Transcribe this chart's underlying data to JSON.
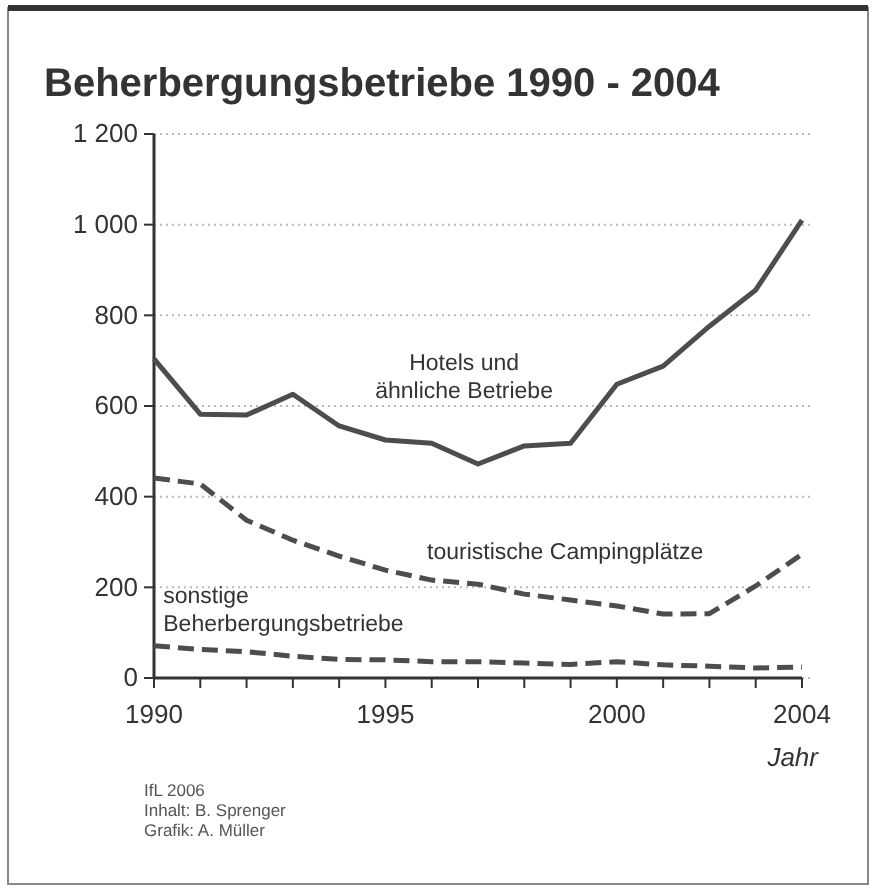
{
  "chart_data": {
    "type": "line",
    "title": "Beherbergungsbetriebe 1990 - 2004",
    "xlabel": "Jahr",
    "x": [
      1990,
      1991,
      1992,
      1993,
      1994,
      1995,
      1996,
      1997,
      1998,
      1999,
      2000,
      2001,
      2002,
      2003,
      2004
    ],
    "xlim": [
      1990,
      2004
    ],
    "xticks": [
      1990,
      {
        "value": 1991,
        "label": null
      },
      {
        "value": 1992,
        "label": null
      },
      {
        "value": 1993,
        "label": null
      },
      {
        "value": 1994,
        "label": null
      },
      1995,
      {
        "value": 1996,
        "label": null
      },
      {
        "value": 1997,
        "label": null
      },
      {
        "value": 1998,
        "label": null
      },
      {
        "value": 1999,
        "label": null
      },
      2000,
      {
        "value": 2001,
        "label": null
      },
      {
        "value": 2002,
        "label": null
      },
      {
        "value": 2003,
        "label": null
      },
      2004
    ],
    "ylim": [
      0,
      1200
    ],
    "yticks": [
      0,
      200,
      400,
      600,
      800,
      {
        "value": 1000,
        "label": "1 000"
      },
      {
        "value": 1200,
        "label": "1 200"
      }
    ],
    "grid": "y",
    "series": [
      {
        "name": "Hotels und\nähnliche Betriebe",
        "color": "#4d4d4d",
        "line_style": "solid",
        "values": [
          704,
          582,
          580,
          626,
          556,
          525,
          518,
          472,
          512,
          518,
          648,
          688,
          776,
          856,
          1010
        ]
      },
      {
        "name": "touristische Campingplätze",
        "color": "#4d4d4d",
        "line_style": "dashed",
        "values": [
          441,
          428,
          348,
          304,
          269,
          238,
          216,
          207,
          185,
          172,
          159,
          141,
          142,
          203,
          273
        ]
      },
      {
        "name": "sonstige\nBeherbergungsbetriebe",
        "color": "#4d4d4d",
        "line_style": "dashed",
        "values": [
          71,
          63,
          58,
          48,
          41,
          40,
          36,
          36,
          33,
          30,
          36,
          29,
          26,
          22,
          24
        ]
      }
    ],
    "annotations": [
      "IfL 2006",
      "Inhalt: B. Sprenger",
      "Grafik: A. Müller"
    ]
  }
}
